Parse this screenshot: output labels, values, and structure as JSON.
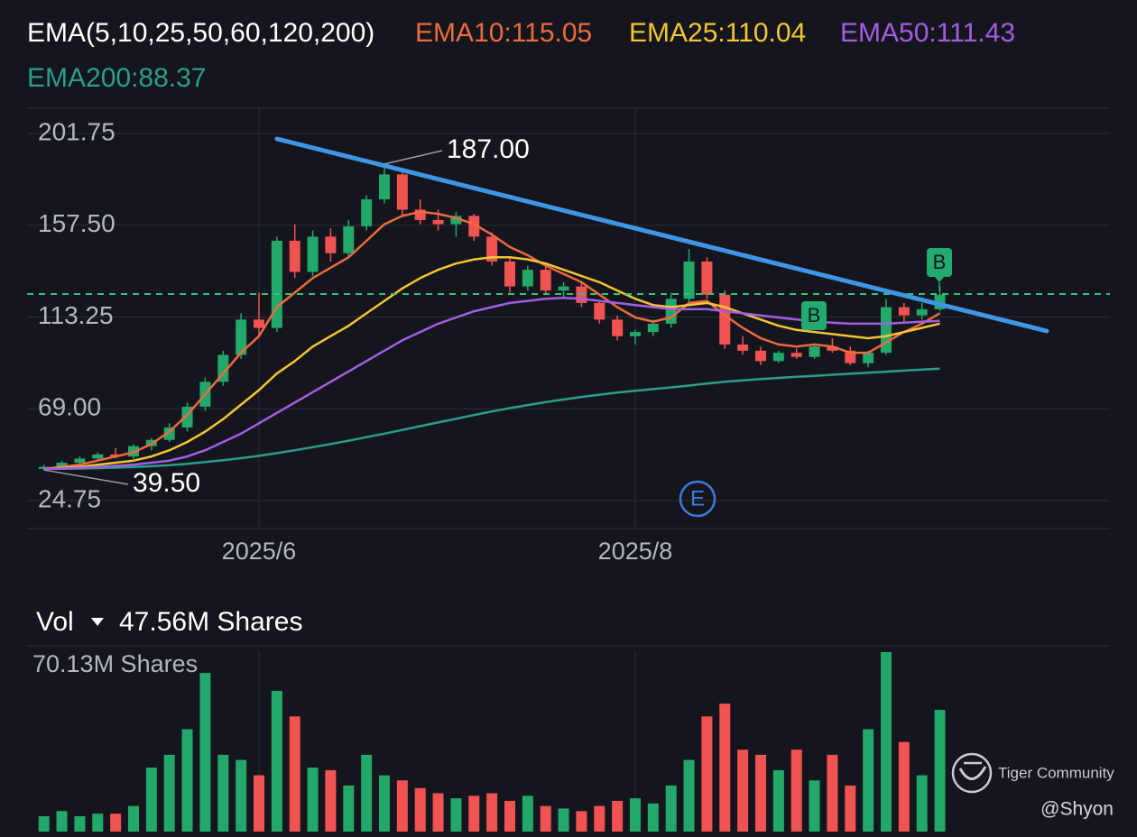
{
  "chart_data": {
    "type": "candlestick",
    "title": "EMA(5,10,25,50,60,120,200)",
    "categories": [
      null,
      null,
      null,
      null,
      null,
      null,
      null,
      null,
      null,
      null,
      null,
      null,
      "2025/6",
      null,
      null,
      null,
      null,
      null,
      null,
      null,
      null,
      null,
      null,
      null,
      null,
      null,
      null,
      null,
      null,
      null,
      null,
      null,
      null,
      "2025/8",
      null,
      null,
      null,
      null,
      null,
      null,
      null,
      null,
      null,
      null,
      null,
      null,
      null,
      null,
      null,
      null,
      null
    ],
    "candles": {
      "open": [
        40,
        41,
        43,
        45,
        47,
        46,
        51,
        54,
        60,
        70,
        82,
        95,
        112,
        108,
        150,
        135,
        152,
        144,
        157,
        170,
        182,
        165,
        160,
        158,
        162,
        152,
        140,
        128,
        136,
        126,
        128,
        120,
        112,
        104,
        106,
        110,
        122,
        140,
        124,
        100,
        97,
        92,
        96,
        94,
        99,
        97,
        91,
        96,
        118,
        114,
        117
      ],
      "high": [
        42,
        44,
        46,
        48,
        50,
        52,
        55,
        62,
        72,
        84,
        97,
        115,
        125,
        152,
        158,
        155,
        156,
        160,
        172,
        187,
        184,
        170,
        165,
        164,
        163,
        154,
        142,
        138,
        138,
        130,
        130,
        121,
        114,
        107,
        112,
        125,
        146,
        142,
        126,
        104,
        99,
        97,
        98,
        100,
        103,
        99,
        97,
        122,
        120,
        120,
        128
      ],
      "low": [
        39.5,
        40,
        42,
        44,
        45,
        45,
        49,
        53,
        58,
        68,
        80,
        93,
        104,
        106,
        132,
        133,
        140,
        142,
        155,
        168,
        162,
        158,
        155,
        152,
        150,
        138,
        125,
        126,
        124,
        122,
        118,
        110,
        102,
        100,
        104,
        108,
        120,
        122,
        98,
        95,
        90,
        91,
        93,
        93,
        96,
        90,
        89,
        95,
        110,
        112,
        116
      ],
      "close": [
        41,
        43,
        45,
        47,
        46,
        51,
        54,
        60,
        70,
        82,
        95,
        112,
        108,
        150,
        135,
        152,
        144,
        157,
        170,
        182,
        165,
        160,
        158,
        162,
        152,
        140,
        128,
        136,
        126,
        128,
        120,
        112,
        104,
        106,
        110,
        122,
        140,
        124,
        100,
        97,
        92,
        96,
        94,
        99,
        97,
        91,
        96,
        118,
        114,
        117,
        124
      ],
      "up_color": "#23a86b",
      "down_color": "#f05352"
    },
    "series": [
      {
        "name": "EMA10:115.05",
        "color": "#ec6a3f",
        "values": [
          40,
          41,
          42,
          44,
          46,
          48,
          52,
          58,
          66,
          76,
          86,
          96,
          104,
          118,
          125,
          132,
          137,
          142,
          150,
          158,
          162,
          164,
          163,
          161,
          158,
          153,
          147,
          143,
          138,
          134,
          130,
          124,
          118,
          113,
          111,
          113,
          120,
          121,
          114,
          108,
          103,
          100,
          99,
          100,
          99,
          96,
          96,
          101,
          106,
          110,
          115.05
        ]
      },
      {
        "name": "EMA25:110.04",
        "color": "#f3c434",
        "values": [
          40,
          40.5,
          41,
          42,
          43,
          44,
          46,
          49,
          53,
          58,
          64,
          71,
          78,
          86,
          92,
          99,
          104,
          109,
          115,
          121,
          127,
          132,
          136,
          139,
          141,
          142,
          142,
          141,
          139,
          136,
          133,
          130,
          126,
          122,
          119,
          118,
          119,
          120,
          118,
          115,
          112,
          109,
          107,
          106,
          105,
          104,
          103,
          104,
          106,
          108,
          110.04
        ]
      },
      {
        "name": "EMA50:111.43",
        "color": "#a35de3",
        "values": [
          40,
          40.2,
          40.5,
          41,
          41.5,
          42,
          43,
          44,
          46,
          49,
          53,
          57,
          62,
          67,
          72,
          77,
          82,
          87,
          92,
          97,
          102,
          106,
          110,
          113,
          116,
          118,
          120,
          121,
          122,
          122.5,
          122,
          121,
          120,
          119,
          118,
          117,
          117,
          117,
          116,
          115,
          114,
          113,
          112,
          111,
          110.5,
          110,
          110,
          110,
          110.5,
          111,
          111.43
        ]
      },
      {
        "name": "EMA200:88.37",
        "color": "#2a9d8c",
        "values": [
          40,
          40.1,
          40.2,
          40.4,
          40.6,
          40.9,
          41.3,
          41.8,
          42.5,
          43.3,
          44.2,
          45.2,
          46.3,
          47.6,
          49,
          50.5,
          52,
          53.6,
          55.3,
          57,
          58.8,
          60.6,
          62.4,
          64.2,
          66,
          67.7,
          69.3,
          70.8,
          72.2,
          73.5,
          74.7,
          75.8,
          76.8,
          77.7,
          78.5,
          79.3,
          80.2,
          81.2,
          82,
          82.7,
          83.3,
          83.9,
          84.4,
          84.9,
          85.4,
          85.9,
          86.4,
          86.9,
          87.4,
          87.9,
          88.37
        ]
      }
    ],
    "ylim": [
      11.7,
      213.9
    ],
    "yticks": [
      201.75,
      {
        "value": 157.5,
        "label": "157.50"
      },
      113.25,
      {
        "value": 69,
        "label": "69.00"
      },
      24.75
    ],
    "grid": true,
    "annotations": [
      {
        "value": 187,
        "label": "187.00"
      },
      {
        "value": 39.5,
        "label": "39.50"
      }
    ],
    "markers": [
      "B",
      "B",
      "E"
    ],
    "volume": {
      "title": "Vol",
      "current": {
        "value": 47.56,
        "label": "47.56M Shares"
      },
      "values": [
        6,
        8,
        6,
        7,
        7,
        10,
        25,
        30,
        40,
        62,
        30,
        28,
        22,
        55,
        45,
        25,
        24,
        18,
        30,
        22,
        20,
        17,
        15,
        13,
        14,
        15,
        12,
        14,
        10,
        9,
        8,
        10,
        12,
        13,
        11,
        18,
        28,
        45,
        50,
        32,
        30,
        24,
        32,
        20,
        30,
        18,
        40,
        70.13,
        35,
        22,
        47.56
      ],
      "ylim": [
        0,
        70.13
      ],
      "yticks": [
        {
          "value": 70.13,
          "label": "70.13M Shares"
        }
      ]
    }
  },
  "watermark": {
    "brand": "Tiger Community",
    "user": "@Shyon"
  }
}
